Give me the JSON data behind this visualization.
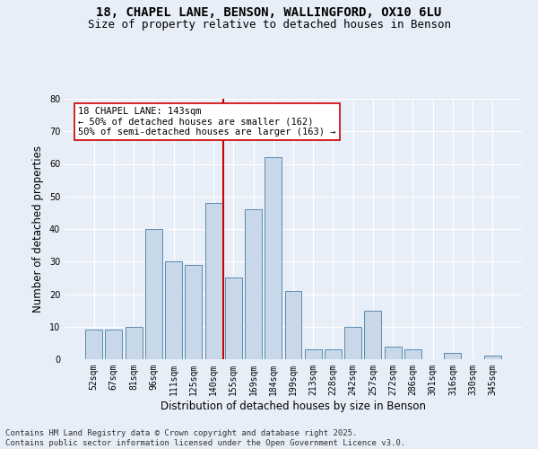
{
  "title_line1": "18, CHAPEL LANE, BENSON, WALLINGFORD, OX10 6LU",
  "title_line2": "Size of property relative to detached houses in Benson",
  "xlabel": "Distribution of detached houses by size in Benson",
  "ylabel": "Number of detached properties",
  "categories": [
    "52sqm",
    "67sqm",
    "81sqm",
    "96sqm",
    "111sqm",
    "125sqm",
    "140sqm",
    "155sqm",
    "169sqm",
    "184sqm",
    "199sqm",
    "213sqm",
    "228sqm",
    "242sqm",
    "257sqm",
    "272sqm",
    "286sqm",
    "301sqm",
    "316sqm",
    "330sqm",
    "345sqm"
  ],
  "values": [
    9,
    9,
    10,
    40,
    30,
    29,
    48,
    25,
    46,
    62,
    21,
    3,
    3,
    10,
    15,
    4,
    3,
    0,
    2,
    0,
    1
  ],
  "bar_color": "#c8d8e8",
  "bar_edge_color": "#5a8ab0",
  "vline_x": 6.5,
  "vline_color": "#cc0000",
  "annotation_text": "18 CHAPEL LANE: 143sqm\n← 50% of detached houses are smaller (162)\n50% of semi-detached houses are larger (163) →",
  "annotation_box_color": "#ffffff",
  "annotation_box_edge": "#cc0000",
  "ylim": [
    0,
    80
  ],
  "yticks": [
    0,
    10,
    20,
    30,
    40,
    50,
    60,
    70,
    80
  ],
  "background_color": "#e8eef8",
  "plot_bg_color": "#e8eef8",
  "footer_line1": "Contains HM Land Registry data © Crown copyright and database right 2025.",
  "footer_line2": "Contains public sector information licensed under the Open Government Licence v3.0.",
  "title_fontsize": 10,
  "subtitle_fontsize": 9,
  "label_fontsize": 8.5,
  "tick_fontsize": 7,
  "footer_fontsize": 6.5,
  "annot_fontsize": 7.5
}
